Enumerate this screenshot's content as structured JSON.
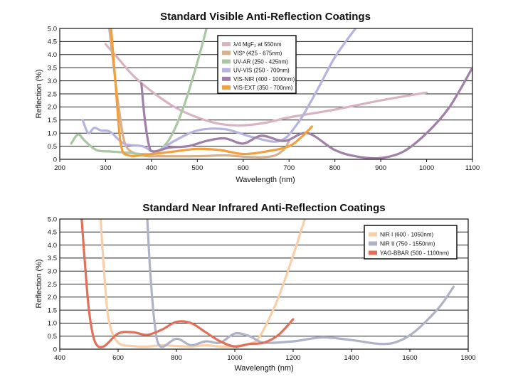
{
  "chart_data": [
    {
      "type": "line",
      "title": "Standard Visible Anti-Reflection Coatings",
      "xlabel": "Wavelength (nm)",
      "ylabel": "Reflection (%)",
      "xlim": [
        200,
        1100
      ],
      "ylim": [
        0,
        5
      ],
      "xticks": [
        "200",
        "300",
        "400",
        "500",
        "600",
        "700",
        "800",
        "900",
        "1000",
        "1100"
      ],
      "yticks": [
        "0",
        "0.5",
        "1.0",
        "1.5",
        "2.0",
        "2.5",
        "3.0",
        "3.5",
        "4.0",
        "4.5",
        "5.0"
      ],
      "grid": "horizontal",
      "legend_position": "top-center",
      "series": [
        {
          "name": "λ/4 MgF₂ at 550nm",
          "color": "#d9b3c3",
          "x": [
            300,
            330,
            360,
            400,
            450,
            500,
            550,
            600,
            650,
            700,
            800,
            900,
            1000
          ],
          "y": [
            4.4,
            3.8,
            3.2,
            2.6,
            2.0,
            1.6,
            1.35,
            1.3,
            1.4,
            1.6,
            1.9,
            2.25,
            2.55
          ]
        },
        {
          "name": "VISº (425 - 675nm)",
          "color": "#d8b08c",
          "x": [
            308,
            318,
            330,
            345,
            380,
            420,
            500,
            560,
            600,
            640,
            670,
            690,
            700
          ],
          "y": [
            5.0,
            3.5,
            1.8,
            0.5,
            0.15,
            0.12,
            0.12,
            0.15,
            0.1,
            0.08,
            0.15,
            0.4,
            0.7
          ]
        },
        {
          "name": "UV-AR (250 - 425nm)",
          "color": "#a9c7a3",
          "x": [
            225,
            240,
            255,
            280,
            310,
            350,
            380,
            410,
            440,
            470,
            500,
            520
          ],
          "y": [
            0.6,
            0.95,
            0.7,
            0.35,
            0.3,
            0.25,
            0.2,
            0.25,
            0.8,
            2.0,
            3.7,
            5.0
          ]
        },
        {
          "name": "UV-VIS (250 - 700nm)",
          "color": "#b6b3de",
          "x": [
            250,
            262,
            275,
            290,
            310,
            340,
            380,
            410,
            450,
            500,
            560,
            620,
            680,
            720,
            760,
            800,
            845
          ],
          "y": [
            1.5,
            1.0,
            1.2,
            1.1,
            1.05,
            0.6,
            0.5,
            0.3,
            0.7,
            1.1,
            1.15,
            0.85,
            0.7,
            1.4,
            2.6,
            3.9,
            5.0
          ]
        },
        {
          "name": "VIS-NIR (400 - 1000nm)",
          "color": "#a07fa8",
          "x": [
            378,
            385,
            395,
            405,
            440,
            480,
            520,
            560,
            600,
            640,
            690,
            740,
            800,
            850,
            900,
            950,
            1000,
            1050,
            1100
          ],
          "y": [
            2.9,
            1.6,
            0.5,
            0.3,
            0.45,
            0.5,
            0.7,
            0.8,
            0.6,
            0.9,
            0.7,
            1.0,
            0.35,
            0.1,
            0.05,
            0.3,
            1.0,
            2.0,
            3.5
          ]
        },
        {
          "name": "VIS-EXT (350 - 700nm)",
          "color": "#f2a03d",
          "x": [
            312,
            322,
            333,
            350,
            400,
            450,
            500,
            550,
            600,
            650,
            700,
            730,
            750
          ],
          "y": [
            5.0,
            2.8,
            0.6,
            0.15,
            0.2,
            0.3,
            0.4,
            0.35,
            0.2,
            0.3,
            0.5,
            0.9,
            1.25
          ]
        }
      ]
    },
    {
      "type": "line",
      "title": "Standard Near Infrared Anti-Reflection Coatings",
      "xlabel": "Wavelength (nm)",
      "ylabel": "Reflection (%)",
      "xlim": [
        400,
        1800
      ],
      "ylim": [
        0,
        5
      ],
      "xticks": [
        "400",
        "600",
        "800",
        "1000",
        "1200",
        "1400",
        "1600",
        "1800"
      ],
      "yticks": [
        "0",
        "0.5",
        "1.0",
        "1.5",
        "2.0",
        "2.5",
        "3.0",
        "3.5",
        "4.0",
        "4.5",
        "5.0"
      ],
      "grid": "horizontal",
      "legend_position": "top-right",
      "series": [
        {
          "name": "NIR I (600 - 1050nm)",
          "color": "#f8cfa8",
          "x": [
            540,
            555,
            570,
            600,
            650,
            700,
            750,
            800,
            850,
            900,
            950,
            1000,
            1050,
            1080,
            1110,
            1150,
            1200,
            1240
          ],
          "y": [
            5.0,
            2.5,
            1.0,
            0.25,
            0.12,
            0.1,
            0.15,
            0.12,
            0.1,
            0.15,
            0.1,
            0.12,
            0.2,
            0.4,
            1.0,
            2.0,
            3.6,
            5.0
          ]
        },
        {
          "name": "NIR II (750 - 1550nm)",
          "color": "#aeb3c7",
          "x": [
            700,
            710,
            725,
            745,
            800,
            850,
            900,
            950,
            1000,
            1050,
            1100,
            1200,
            1300,
            1400,
            1500,
            1560,
            1620,
            1700,
            1750
          ],
          "y": [
            5.0,
            3.0,
            1.0,
            0.1,
            0.4,
            0.15,
            0.3,
            0.25,
            0.6,
            0.5,
            0.25,
            0.3,
            0.45,
            0.35,
            0.2,
            0.3,
            0.7,
            1.6,
            2.4
          ]
        },
        {
          "name": "YAG-BBAR (500 - 1100nm)",
          "color": "#e0705a",
          "x": [
            475,
            485,
            500,
            520,
            550,
            600,
            650,
            700,
            750,
            800,
            850,
            900,
            950,
            1000,
            1050,
            1100,
            1150,
            1200
          ],
          "y": [
            5.0,
            3.5,
            1.5,
            0.3,
            0.1,
            0.6,
            0.65,
            0.55,
            0.75,
            1.05,
            1.0,
            0.65,
            0.3,
            0.1,
            0.2,
            0.25,
            0.55,
            1.15
          ]
        }
      ]
    }
  ]
}
